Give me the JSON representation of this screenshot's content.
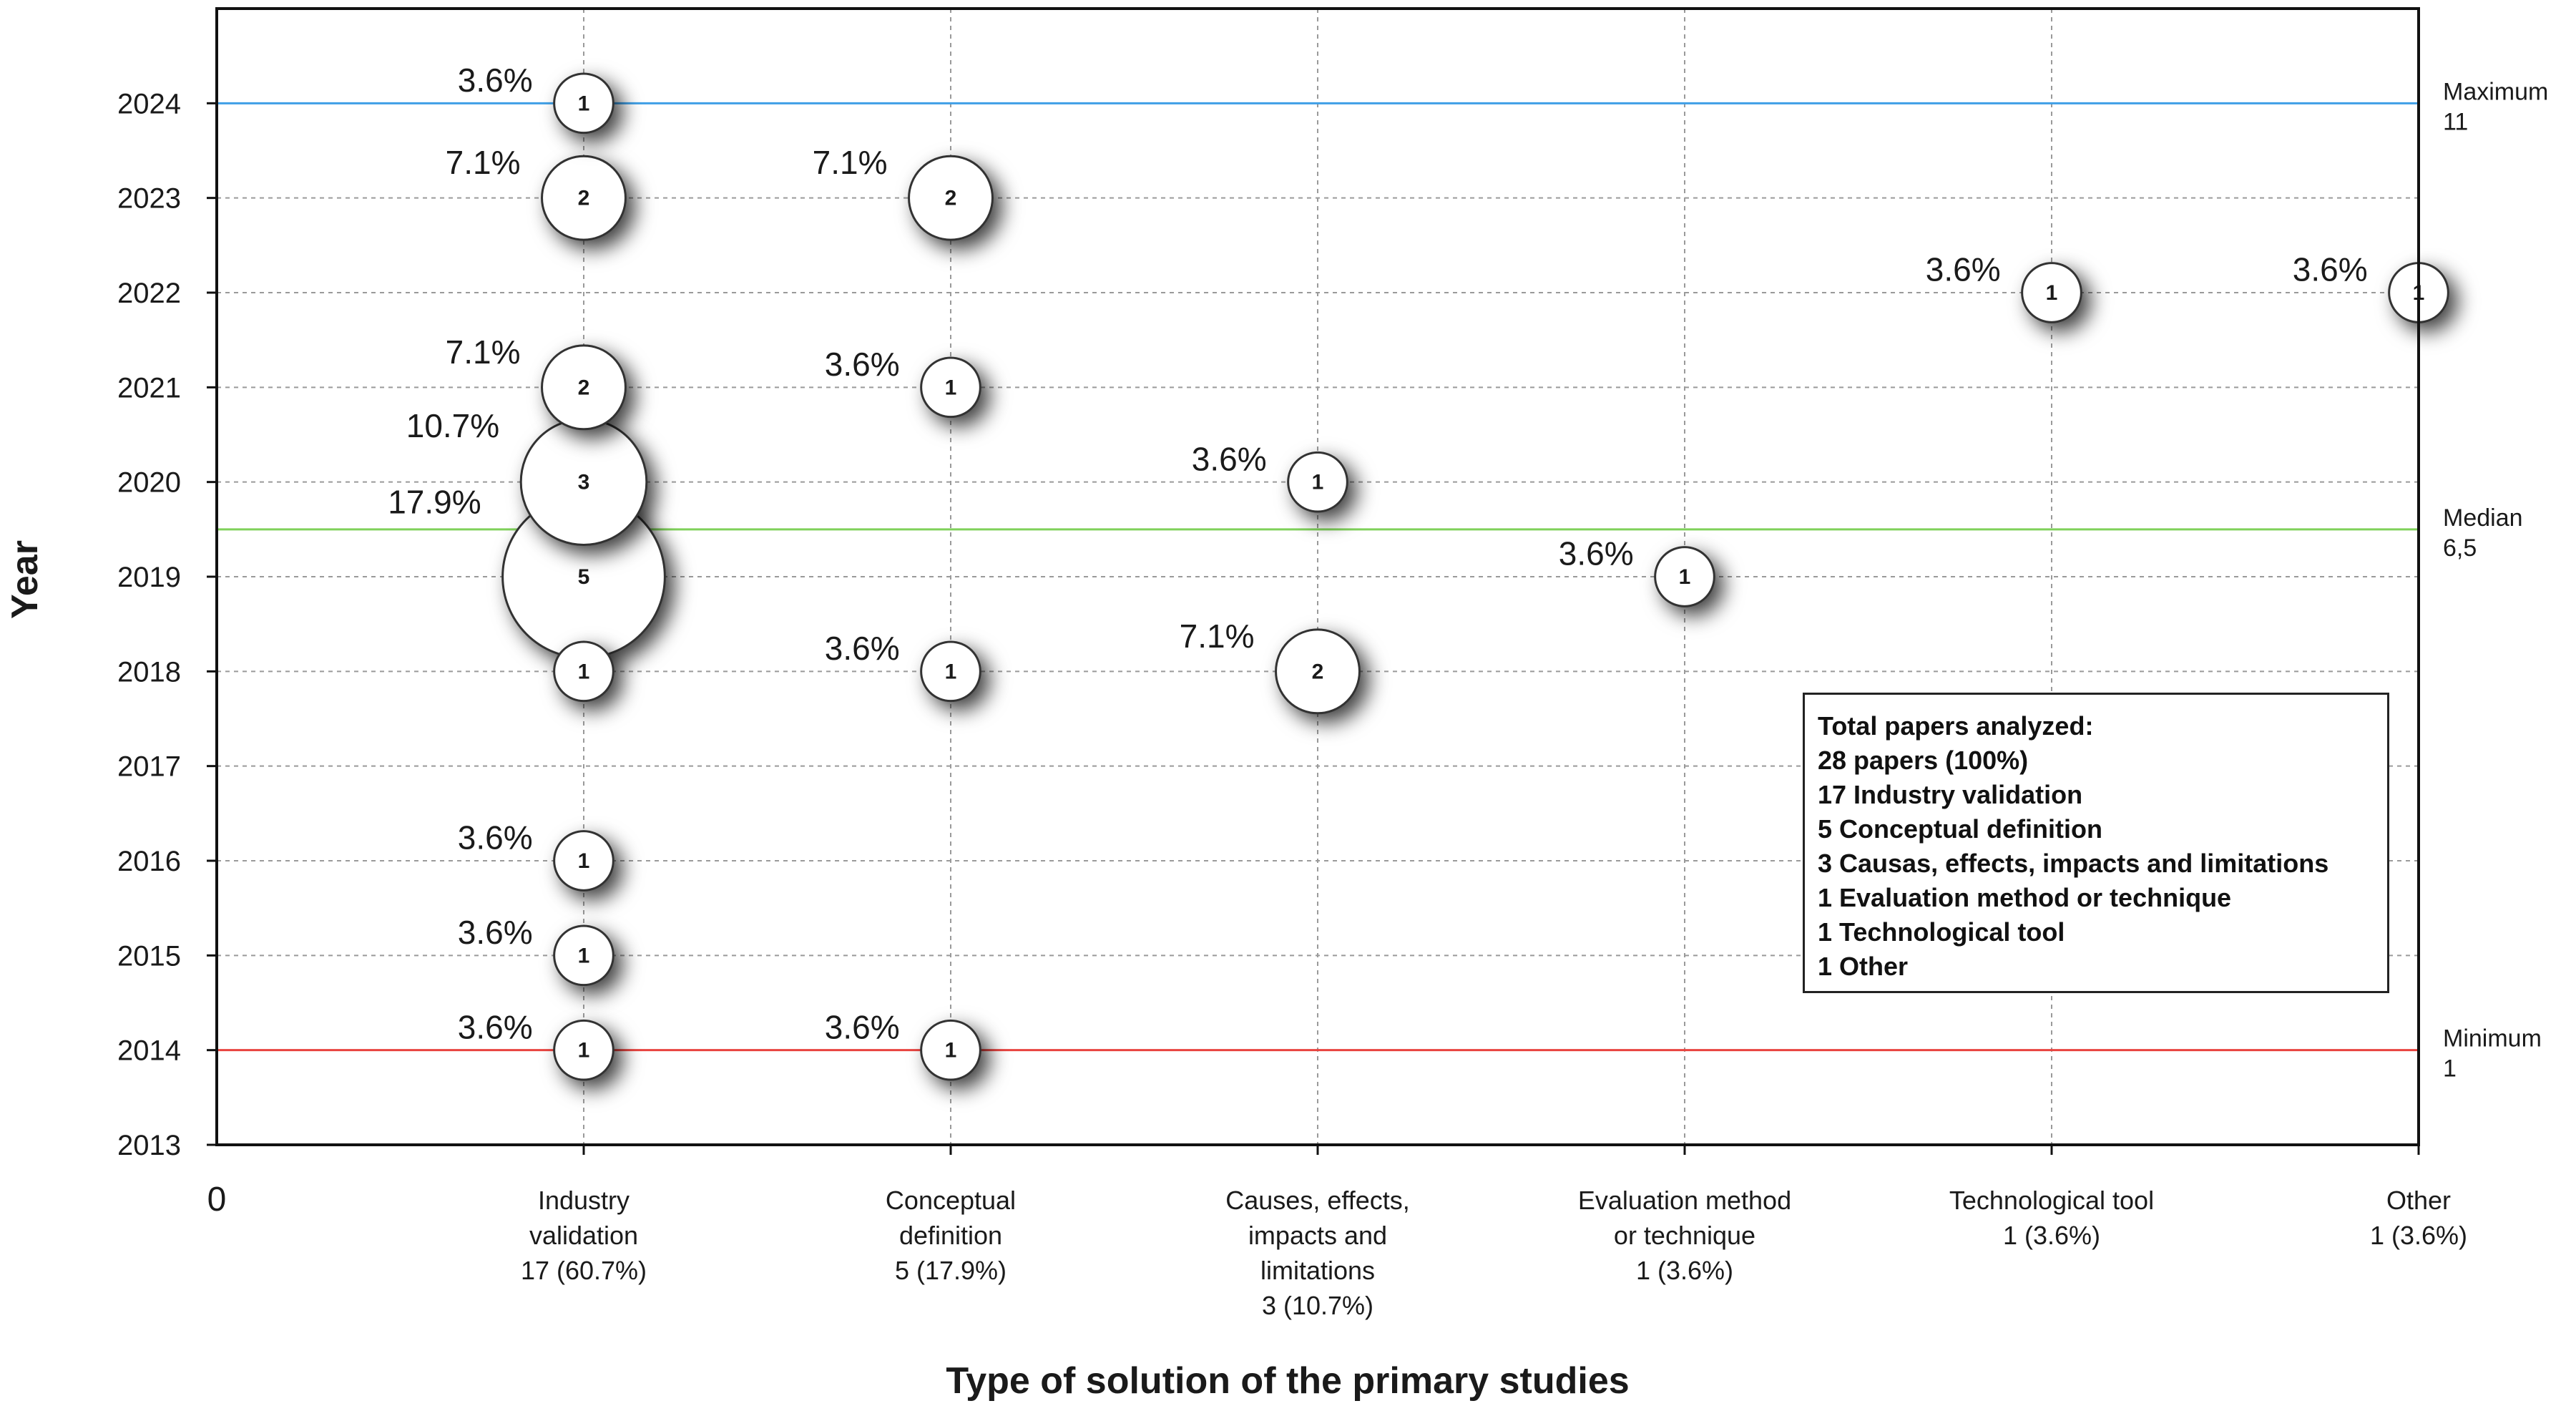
{
  "chart_data": {
    "type": "bubble",
    "xlabel": "Type of solution of the primary studies",
    "ylabel": "Year",
    "x_origin_label": "0",
    "categories": [
      {
        "lines": [
          "Industry",
          "validation",
          "17 (60.7%)"
        ]
      },
      {
        "lines": [
          "Conceptual",
          "definition",
          "5 (17.9%)"
        ]
      },
      {
        "lines": [
          "Causes, effects,",
          "impacts and",
          "limitations",
          "3 (10.7%)"
        ]
      },
      {
        "lines": [
          "Evaluation method",
          "or technique",
          "1 (3.6%)"
        ]
      },
      {
        "lines": [
          "Technological tool",
          "1 (3.6%)"
        ]
      },
      {
        "lines": [
          "Other",
          "1 (3.6%)"
        ]
      }
    ],
    "years": [
      2013,
      2014,
      2015,
      2016,
      2017,
      2018,
      2019,
      2020,
      2021,
      2022,
      2023,
      2024
    ],
    "ylim": [
      2013,
      2025
    ],
    "grid": true,
    "points": [
      {
        "cat": 0,
        "year": 2024,
        "count": 1,
        "pct": "3.6%"
      },
      {
        "cat": 0,
        "year": 2023,
        "count": 2,
        "pct": "7.1%"
      },
      {
        "cat": 0,
        "year": 2021,
        "count": 2,
        "pct": "7.1%"
      },
      {
        "cat": 0,
        "year": 2020,
        "count": 3,
        "pct": "10.7%"
      },
      {
        "cat": 0,
        "year": 2019,
        "count": 5,
        "pct": "17.9%"
      },
      {
        "cat": 0,
        "year": 2018,
        "count": 1,
        "pct": ""
      },
      {
        "cat": 0,
        "year": 2016,
        "count": 1,
        "pct": "3.6%"
      },
      {
        "cat": 0,
        "year": 2015,
        "count": 1,
        "pct": "3.6%"
      },
      {
        "cat": 0,
        "year": 2014,
        "count": 1,
        "pct": "3.6%"
      },
      {
        "cat": 1,
        "year": 2023,
        "count": 2,
        "pct": "7.1%"
      },
      {
        "cat": 1,
        "year": 2021,
        "count": 1,
        "pct": "3.6%"
      },
      {
        "cat": 1,
        "year": 2018,
        "count": 1,
        "pct": "3.6%"
      },
      {
        "cat": 1,
        "year": 2014,
        "count": 1,
        "pct": "3.6%"
      },
      {
        "cat": 2,
        "year": 2020,
        "count": 1,
        "pct": "3.6%"
      },
      {
        "cat": 2,
        "year": 2018,
        "count": 2,
        "pct": "7.1%"
      },
      {
        "cat": 3,
        "year": 2019,
        "count": 1,
        "pct": "3.6%"
      },
      {
        "cat": 4,
        "year": 2022,
        "count": 1,
        "pct": "3.6%"
      },
      {
        "cat": 5,
        "year": 2022,
        "count": 1,
        "pct": "3.6%"
      }
    ],
    "reference_lines": [
      {
        "name": "Maximum",
        "value_label": "11",
        "year": 2024,
        "color": "#3f9fe6"
      },
      {
        "name": "Median",
        "value_label": "6,5",
        "year": 2019.5,
        "color": "#7fd15a"
      },
      {
        "name": "Minimum",
        "value_label": "1",
        "year": 2014,
        "color": "#e8433f"
      }
    ]
  },
  "legend": {
    "lines": [
      "Total papers analyzed:",
      "28 papers (100%)",
      "17 Industry validation",
      "5 Conceptual definition",
      "3 Causas, effects, impacts and limitations",
      "1 Evaluation method or technique",
      "1 Technological tool",
      "1 Other"
    ]
  }
}
